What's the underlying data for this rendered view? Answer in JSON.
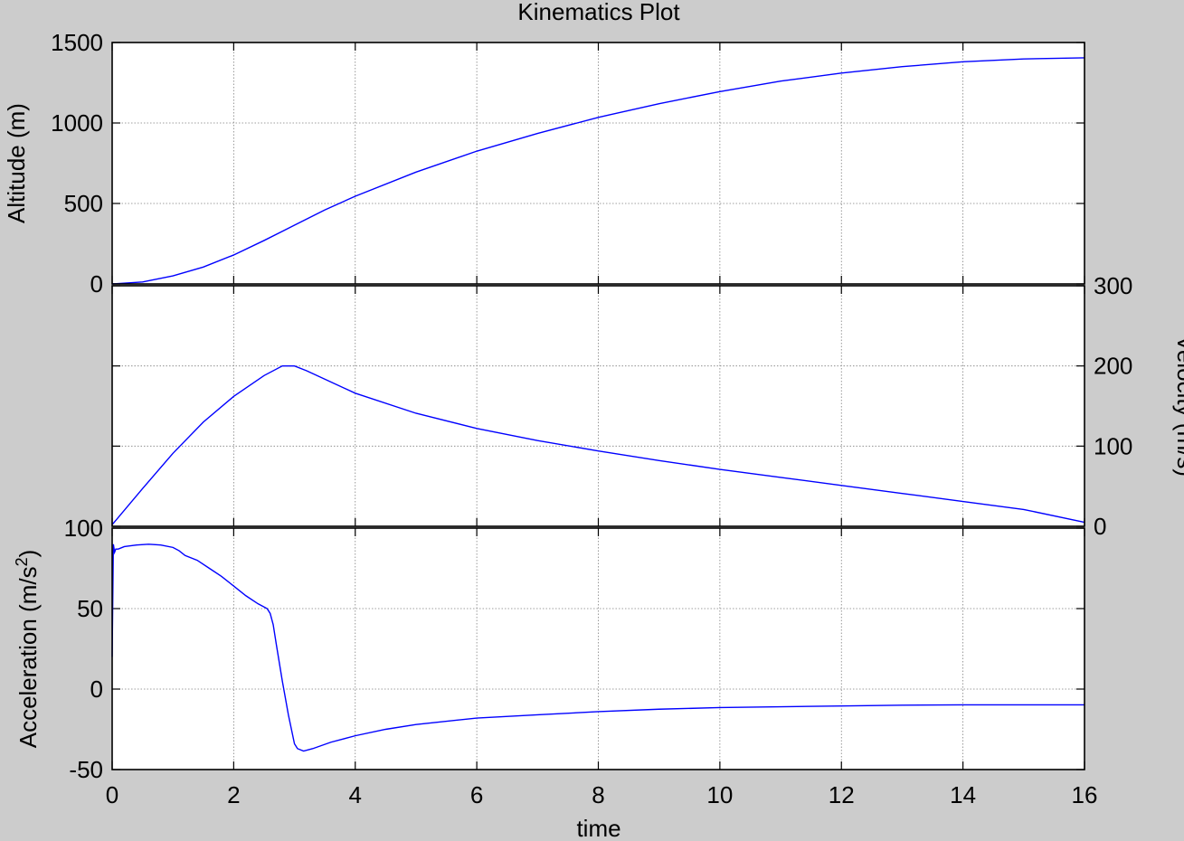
{
  "figure": {
    "title": "Kinematics Plot",
    "xlabel": "time",
    "background": "#cccccc",
    "axes_background": "#ffffff",
    "line_color": "#0000ff",
    "grid_color": "#808080"
  },
  "chart_data": [
    {
      "type": "line",
      "ylabel": "Altitude (m)",
      "ylabel_side": "left",
      "xlim": [
        0,
        16
      ],
      "ylim": [
        0,
        1500
      ],
      "xticks": [
        0,
        2,
        4,
        6,
        8,
        10,
        12,
        14,
        16
      ],
      "yticks": [
        0,
        500,
        1000,
        1500
      ],
      "ytick_side": "left",
      "grid": true,
      "series": [
        {
          "x": [
            0,
            0.5,
            1,
            1.5,
            2,
            2.5,
            3,
            3.5,
            4,
            5,
            6,
            7,
            8,
            9,
            10,
            11,
            12,
            13,
            14,
            15,
            16
          ],
          "y": [
            0,
            12,
            50,
            105,
            180,
            270,
            365,
            460,
            545,
            695,
            825,
            935,
            1035,
            1120,
            1195,
            1260,
            1310,
            1350,
            1380,
            1398,
            1405
          ]
        }
      ]
    },
    {
      "type": "line",
      "ylabel": "Velocity (m/s)",
      "ylabel_side": "right",
      "xlim": [
        0,
        16
      ],
      "ylim": [
        0,
        300
      ],
      "xticks": [
        0,
        2,
        4,
        6,
        8,
        10,
        12,
        14,
        16
      ],
      "yticks": [
        0,
        100,
        200,
        300
      ],
      "ytick_side": "right",
      "grid": true,
      "series": [
        {
          "x": [
            0,
            0.5,
            1,
            1.5,
            2,
            2.5,
            2.8,
            3.0,
            3.2,
            4,
            5,
            6,
            7,
            8,
            9,
            10,
            11,
            12,
            13,
            14,
            15,
            16
          ],
          "y": [
            2,
            47,
            91,
            130,
            162,
            188,
            200,
            200,
            194,
            166,
            141,
            122,
            107,
            94,
            82,
            71,
            61,
            51,
            41,
            31,
            21,
            5
          ]
        }
      ]
    },
    {
      "type": "line",
      "ylabel": "Acceleration (m/s",
      "ylabel_superscript": "2",
      "ylabel_suffix": ")",
      "ylabel_side": "left",
      "xlim": [
        0,
        16
      ],
      "ylim": [
        -50,
        100
      ],
      "xticks": [
        0,
        2,
        4,
        6,
        8,
        10,
        12,
        14,
        16
      ],
      "xticklabels": [
        "0",
        "2",
        "4",
        "6",
        "8",
        "10",
        "12",
        "14",
        "16"
      ],
      "yticks": [
        -50,
        0,
        50,
        100
      ],
      "ytick_side": "left",
      "grid": true,
      "series": [
        {
          "x": [
            0,
            0.02,
            0.04,
            0.06,
            0.1,
            0.2,
            0.4,
            0.6,
            0.8,
            1.0,
            1.1,
            1.2,
            1.4,
            1.6,
            1.8,
            2.0,
            2.2,
            2.4,
            2.55,
            2.6,
            2.65,
            2.7,
            2.8,
            2.9,
            3.0,
            3.05,
            3.15,
            3.3,
            3.6,
            4,
            4.5,
            5,
            6,
            7,
            8,
            9,
            10,
            11,
            12,
            13,
            14,
            15,
            16
          ],
          "y": [
            20,
            90,
            85,
            87,
            87,
            88.5,
            89.5,
            90,
            89.5,
            88,
            86,
            83,
            80,
            75,
            70,
            64,
            58,
            53,
            50,
            47,
            40,
            28,
            5,
            -16,
            -34,
            -37,
            -38.5,
            -37,
            -33,
            -29,
            -25,
            -22,
            -18,
            -16,
            -14,
            -12.5,
            -11.5,
            -11,
            -10.5,
            -10,
            -9.8,
            -9.8,
            -9.8
          ]
        }
      ]
    }
  ]
}
